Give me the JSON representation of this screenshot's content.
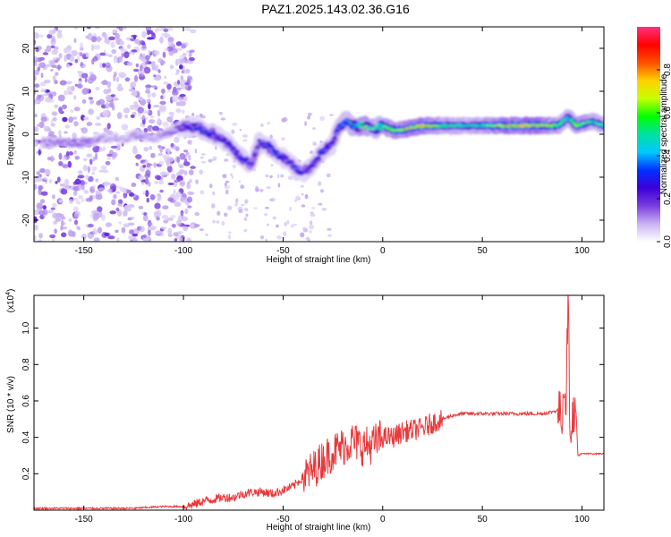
{
  "title": "PAZ1.2025.143.02.36.G16",
  "colors": {
    "snr_line": "#e8393c",
    "axis": "#000000",
    "track": "#e8393c",
    "colorbar_stops": [
      "#ffffff",
      "#c9b3f3",
      "#7a3de0",
      "#3b00d8",
      "#0030ff",
      "#00c8ff",
      "#00e0a0",
      "#00ff00",
      "#c8ff00",
      "#ffd000",
      "#ff5000",
      "#ff0000",
      "#ff3080"
    ]
  },
  "chart_data": [
    {
      "type": "heatmap",
      "xlabel": "Height of straight line (km)",
      "ylabel": "Frequency (Hz)",
      "xlim": [
        -175,
        111
      ],
      "ylim": [
        -25,
        25
      ],
      "xticks": [
        -150,
        -100,
        -50,
        0,
        50,
        100
      ],
      "yticks": [
        20,
        10,
        0,
        -10,
        -20
      ],
      "colorbar": {
        "label": "Normalized spectral amplitude",
        "range": [
          0,
          1
        ],
        "ticks": [
          "0.0",
          "0.2",
          "0.4",
          "0.6",
          "0.8"
        ]
      },
      "ridge": {
        "x": [
          -165,
          -150,
          -140,
          -130,
          -122,
          -115,
          -105,
          -98,
          -90,
          -85,
          -78,
          -72,
          -66,
          -62,
          -57,
          -52,
          -48,
          -44,
          -40,
          -35,
          -30,
          -25,
          -22,
          -18,
          -15,
          -10,
          -5,
          0,
          5,
          10,
          20,
          30,
          40,
          50,
          60,
          70,
          80,
          88,
          93,
          97,
          105,
          111
        ],
        "frequency": [
          -2,
          -2,
          -1,
          -1,
          0,
          -1,
          1,
          2,
          1,
          0,
          -2,
          -5,
          -7,
          -2,
          -3,
          -5,
          -6,
          -8,
          -9,
          -7,
          -4,
          -2,
          2,
          3,
          2,
          2,
          1,
          2,
          1,
          1,
          2,
          2,
          2,
          2,
          2,
          2,
          2,
          2,
          4,
          2,
          3,
          2
        ],
        "amplitude": [
          0.15,
          0.18,
          0.12,
          0.1,
          0.15,
          0.1,
          0.18,
          0.3,
          0.35,
          0.35,
          0.3,
          0.35,
          0.3,
          0.3,
          0.35,
          0.35,
          0.3,
          0.35,
          0.3,
          0.3,
          0.35,
          0.3,
          0.4,
          0.45,
          0.5,
          0.7,
          0.6,
          0.6,
          0.7,
          0.75,
          0.85,
          0.6,
          0.55,
          0.55,
          0.8,
          0.85,
          0.8,
          0.65,
          0.5,
          0.7,
          0.6,
          0.55
        ]
      }
    },
    {
      "type": "line",
      "xlabel": "Height of straight line (km)",
      "ylabel": "SNR (10 * v/v)",
      "y_scale_note": "(x10",
      "y_scale_exp": "4",
      "y_scale_close": ")",
      "xlim": [
        -175,
        111
      ],
      "ylim": [
        0,
        1.18
      ],
      "xticks": [
        -150,
        -100,
        -50,
        0,
        50,
        100
      ],
      "yticks": [
        0.2,
        0.4,
        0.6,
        0.8,
        1.0
      ],
      "series": [
        {
          "x": [
            -175,
            -150,
            -125,
            -110,
            -100,
            -95,
            -90,
            -85,
            -80,
            -75,
            -70,
            -65,
            -60,
            -55,
            -50,
            -45,
            -40,
            -35,
            -30,
            -25,
            -20,
            -15,
            -10,
            -5,
            0,
            5,
            10,
            15,
            20,
            25,
            30,
            35,
            40,
            50,
            60,
            70,
            80,
            85,
            88,
            90,
            91,
            92,
            93,
            94,
            95,
            96,
            97,
            98,
            100,
            105,
            111
          ],
          "values": [
            0.01,
            0.01,
            0.01,
            0.02,
            0.02,
            0.03,
            0.05,
            0.06,
            0.07,
            0.07,
            0.09,
            0.1,
            0.1,
            0.09,
            0.11,
            0.13,
            0.18,
            0.22,
            0.28,
            0.32,
            0.35,
            0.38,
            0.35,
            0.36,
            0.4,
            0.4,
            0.43,
            0.44,
            0.45,
            0.48,
            0.5,
            0.52,
            0.53,
            0.53,
            0.53,
            0.53,
            0.53,
            0.54,
            0.55,
            0.52,
            0.7,
            0.6,
            1.18,
            0.45,
            0.5,
            0.55,
            0.5,
            0.3,
            0.31,
            0.31,
            0.31
          ]
        }
      ]
    }
  ]
}
